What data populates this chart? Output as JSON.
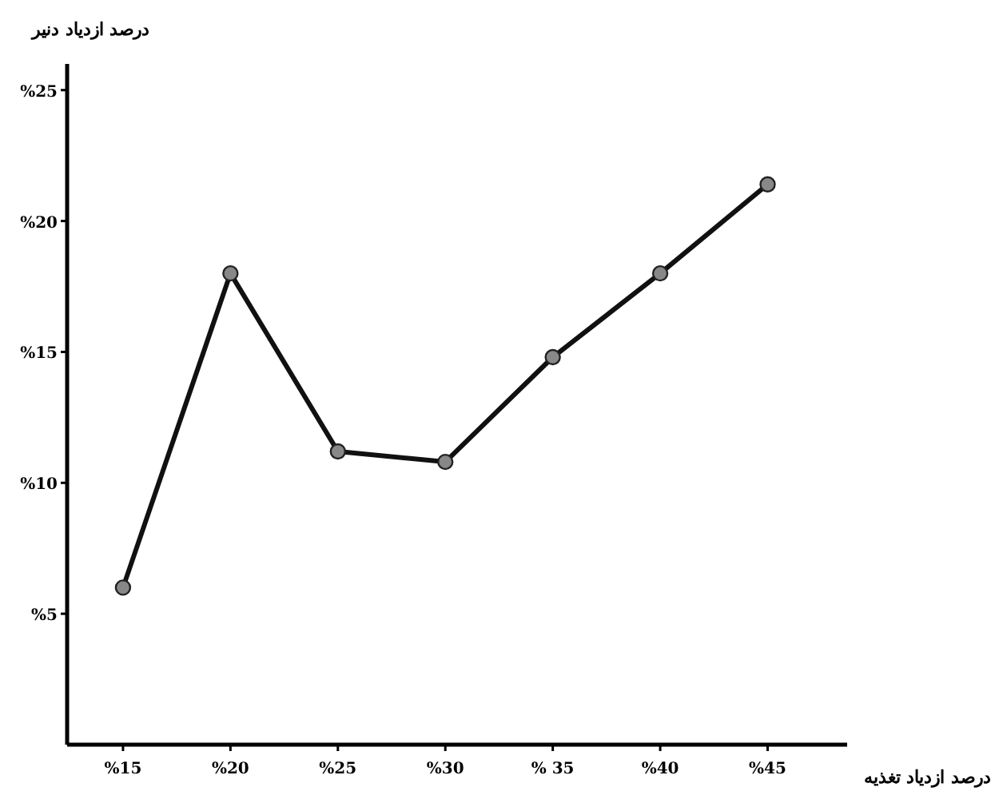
{
  "chart_data": {
    "type": "line",
    "xlabel": "درصد ازدیاد تغذیه",
    "ylabel": "درصد ازدیاد دنیر",
    "x": [
      15,
      20,
      25,
      30,
      35,
      40,
      45
    ],
    "series": [
      {
        "color": "#111111",
        "values": [
          6,
          18,
          11.2,
          10.8,
          14.8,
          18,
          21.4
        ]
      }
    ],
    "xlim": [
      12.4,
      48.7
    ],
    "ylim": [
      0,
      26
    ],
    "xticks": [
      {
        "value": 15,
        "label": "%15"
      },
      {
        "value": 20,
        "label": "%20"
      },
      {
        "value": 25,
        "label": "%25"
      },
      {
        "value": 30,
        "label": "%30"
      },
      {
        "value": 35,
        "label": "% 35"
      },
      {
        "value": 40,
        "label": "%40"
      },
      {
        "value": 45,
        "label": "%45"
      }
    ],
    "yticks": [
      {
        "value": 5,
        "label": "%5"
      },
      {
        "value": 10,
        "label": "%10"
      },
      {
        "value": 15,
        "label": "%15"
      },
      {
        "value": 20,
        "label": "%20"
      },
      {
        "value": 25,
        "label": "%25"
      }
    ],
    "marker": "circle",
    "line_style": "solid",
    "grid": false
  }
}
